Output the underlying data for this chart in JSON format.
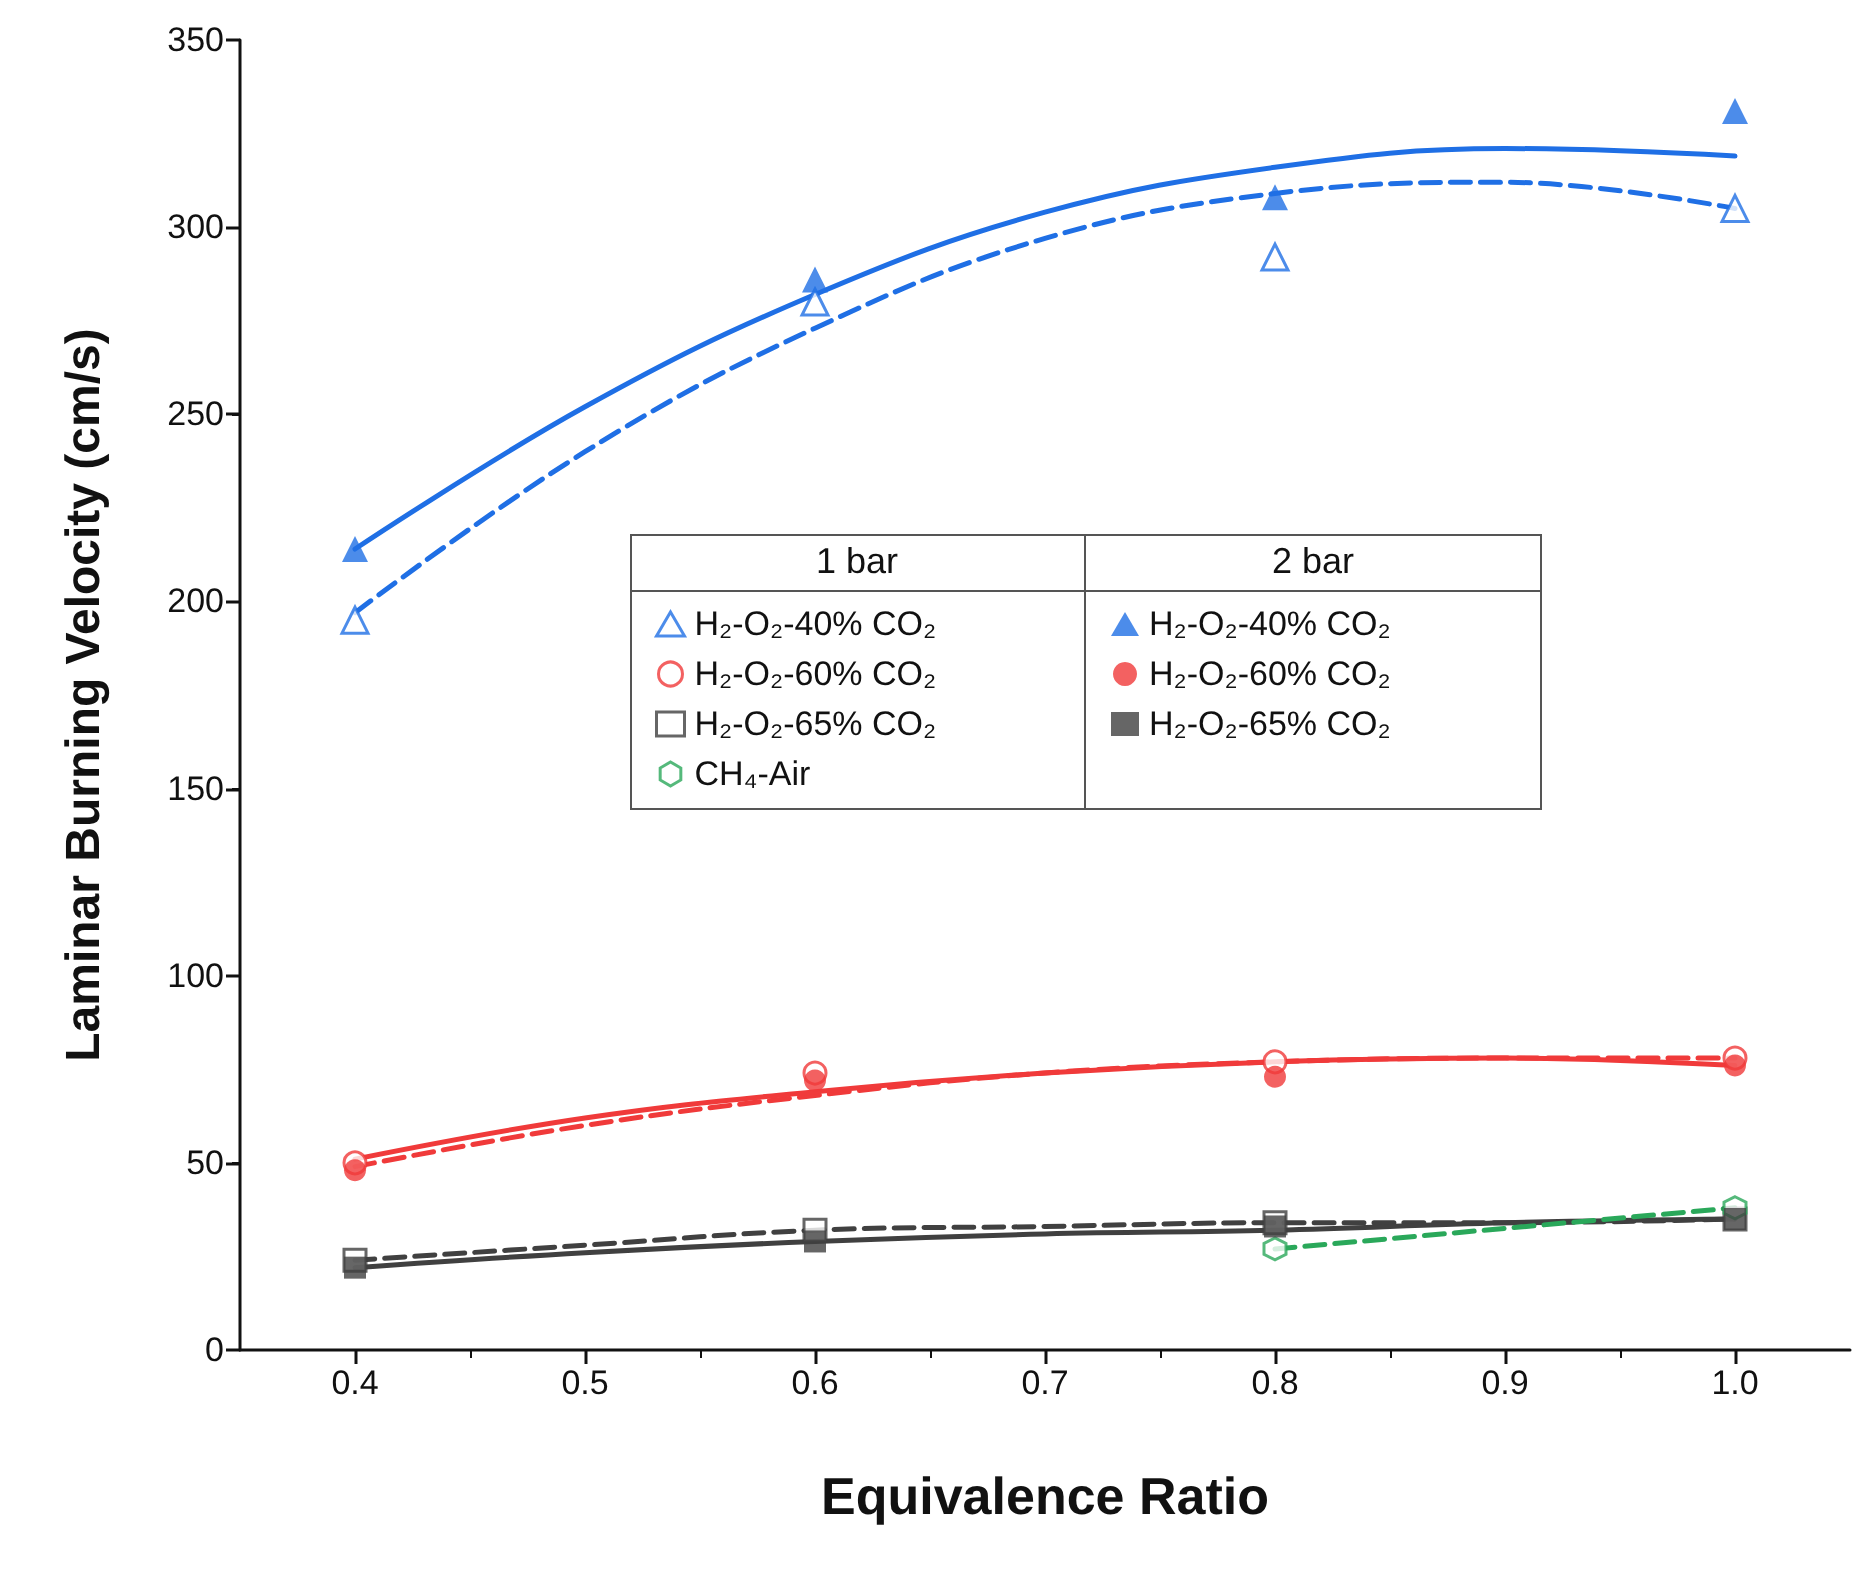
{
  "chart_data": {
    "type": "scatter",
    "xlabel": "Equivalence Ratio",
    "ylabel": "Laminar Burning Velocity (cm/s)",
    "x": [
      0.4,
      0.6,
      0.8,
      1.0
    ],
    "xlim": [
      0.35,
      1.05
    ],
    "xticks": [
      0.4,
      0.5,
      0.6,
      0.7,
      0.8,
      0.9,
      {
        "value": 1,
        "label": "1.0"
      }
    ],
    "ylim": [
      0,
      350
    ],
    "yticks": [
      0,
      50,
      100,
      150,
      200,
      250,
      300,
      350
    ],
    "grid": false,
    "legend": "center",
    "annotations": [
      "1 bar",
      "2 bar"
    ],
    "series": [
      {
        "name": "H₂-O₂-40% CO₂",
        "color": "#1f6fe5",
        "marker": "triangle-open",
        "values": [
          195,
          280,
          292,
          305
        ]
      },
      {
        "name": "H₂-O₂-60% CO₂",
        "color": "#f03a3a",
        "marker": "circle-open",
        "values": [
          50,
          74,
          77,
          78
        ]
      },
      {
        "name": "H₂-O₂-65% CO₂",
        "color": "#404040",
        "marker": "square-open",
        "values": [
          24,
          32,
          34,
          35
        ]
      },
      {
        "name": "CH₄-Air",
        "color": "#2aa85a",
        "x": [
          0.8,
          1.0
        ],
        "values": [
          27,
          38
        ]
      },
      {
        "name": "H₂-O₂-40% CO₂",
        "color": "#1f6fe5",
        "marker": "triangle",
        "values": [
          214,
          286,
          308,
          331
        ]
      },
      {
        "name": "H₂-O₂-60% CO₂",
        "color": "#f03a3a",
        "marker": "circle",
        "values": [
          48,
          72,
          73,
          76
        ]
      },
      {
        "name": "H₂-O₂-65% CO₂",
        "color": "#404040",
        "marker": "square",
        "values": [
          22,
          29,
          33,
          35
        ]
      },
      {
        "type": "line",
        "color": "#1f6fe5",
        "line_style": "dashed",
        "x": [
          0.4,
          0.5,
          0.6,
          0.7,
          0.8,
          0.9,
          1.0
        ],
        "values": [
          197,
          240,
          273,
          297,
          309,
          312,
          305
        ]
      },
      {
        "type": "line",
        "color": "#1f6fe5",
        "line_style": "solid",
        "x": [
          0.4,
          0.5,
          0.6,
          0.7,
          0.8,
          0.9,
          1.0
        ],
        "values": [
          214,
          252,
          282,
          304,
          316,
          321,
          319
        ]
      },
      {
        "type": "line",
        "color": "#f03a3a",
        "line_style": "dashed",
        "x": [
          0.4,
          0.5,
          0.6,
          0.7,
          0.8,
          0.9,
          1.0
        ],
        "values": [
          49,
          60,
          68,
          74,
          77,
          78,
          78
        ]
      },
      {
        "type": "line",
        "color": "#f03a3a",
        "line_style": "solid",
        "x": [
          0.4,
          0.5,
          0.6,
          0.7,
          0.8,
          0.9,
          1.0
        ],
        "values": [
          51,
          62,
          69,
          74,
          77,
          78,
          76
        ]
      },
      {
        "type": "line",
        "color": "#404040",
        "line_style": "dashed",
        "x": [
          0.4,
          0.5,
          0.6,
          0.7,
          0.8,
          0.9,
          1.0
        ],
        "values": [
          24,
          28,
          32,
          33,
          34,
          34,
          35
        ]
      },
      {
        "type": "line",
        "color": "#404040",
        "line_style": "solid",
        "x": [
          0.4,
          0.5,
          0.6,
          0.7,
          0.8,
          0.9,
          1.0
        ],
        "values": [
          22,
          26,
          29,
          31,
          32,
          34,
          35
        ]
      },
      {
        "type": "line",
        "color": "#2aa85a",
        "line_style": "dashed",
        "x": [
          0.8,
          1.0
        ],
        "values": [
          27,
          38
        ]
      }
    ]
  }
}
